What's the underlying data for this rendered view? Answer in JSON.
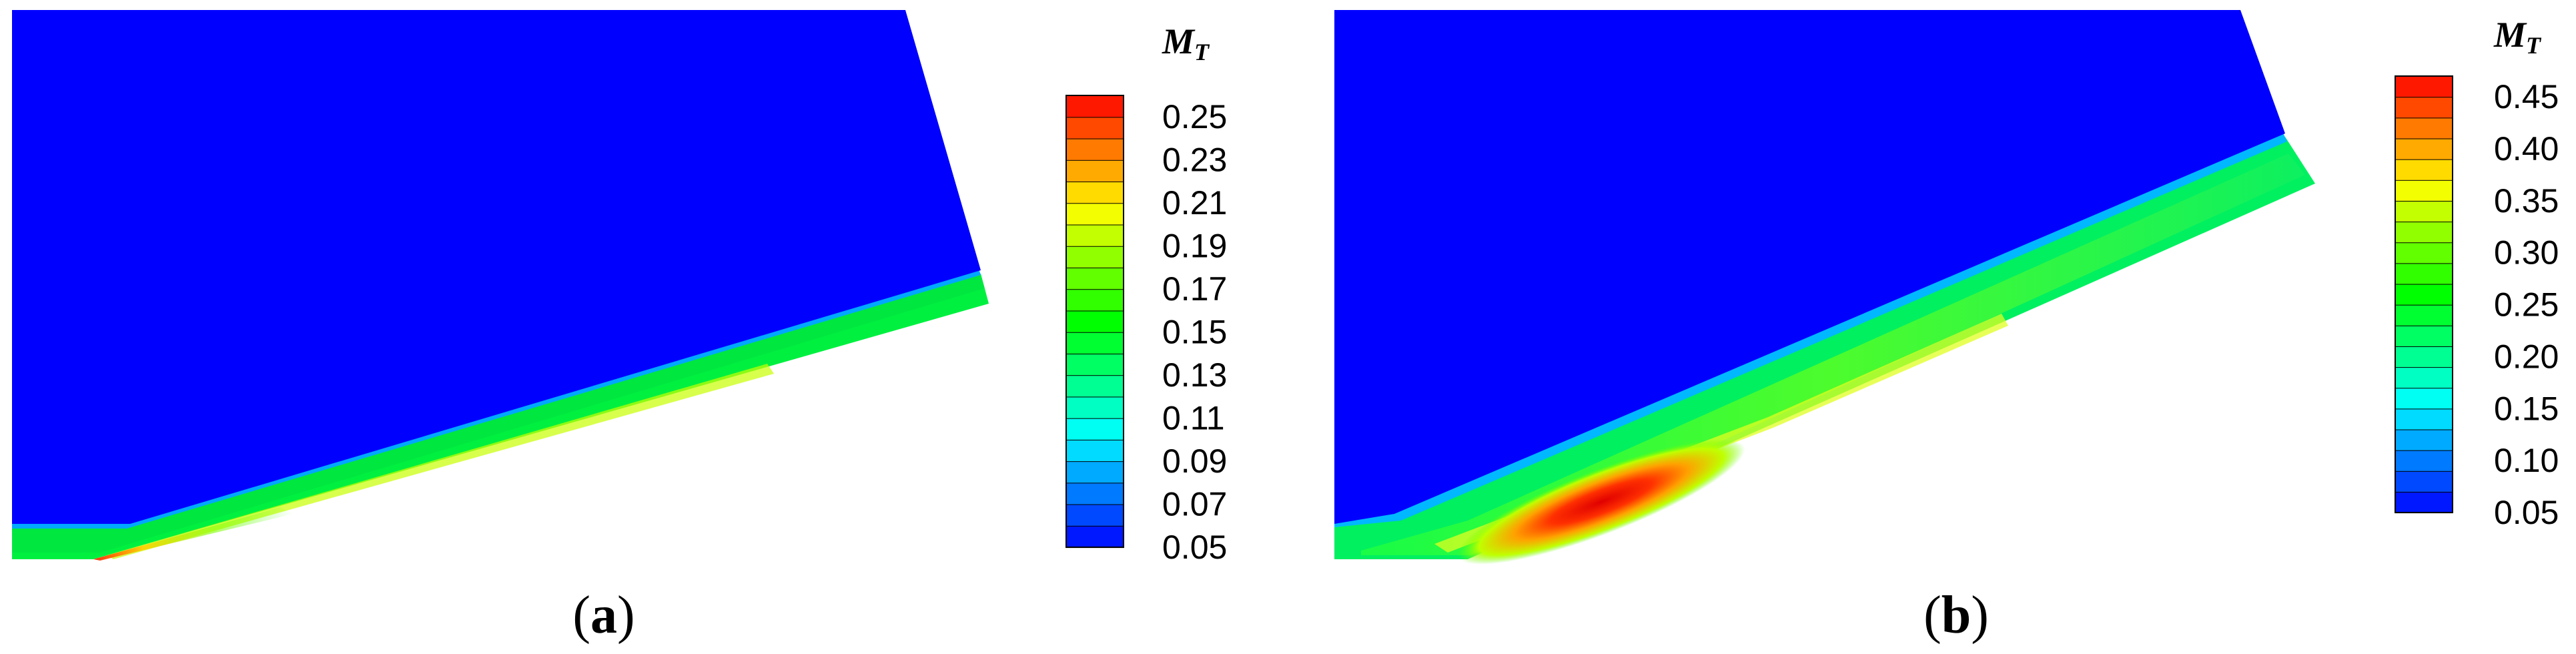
{
  "figure": {
    "panels": [
      {
        "label_open": "(",
        "label_letter": "a",
        "label_close": ")",
        "colorbar_title_main": "M",
        "colorbar_title_sub": "T",
        "colorbar_ticks": [
          "0.25",
          "0.23",
          "0.21",
          "0.19",
          "0.17",
          "0.15",
          "0.13",
          "0.11",
          "0.09",
          "0.07",
          "0.05"
        ],
        "colorbar_range": [
          0.05,
          0.26
        ],
        "colorbar_levels": 21,
        "peak_value": 0.26
      },
      {
        "label_open": "(",
        "label_letter": "b",
        "label_close": ")",
        "colorbar_title_main": "M",
        "colorbar_title_sub": "T",
        "colorbar_ticks": [
          "0.45",
          "0.40",
          "0.35",
          "0.30",
          "0.25",
          "0.20",
          "0.15",
          "0.10",
          "0.05"
        ],
        "colorbar_range": [
          0.05,
          0.47
        ],
        "colorbar_levels": 21,
        "peak_value": 0.46
      }
    ]
  },
  "chart_data": [
    {
      "type": "heatmap",
      "title": "",
      "colorbar_label": "M_T",
      "colorbar_ticks": [
        0.25,
        0.23,
        0.21,
        0.19,
        0.17,
        0.15,
        0.13,
        0.11,
        0.09,
        0.07,
        0.05
      ],
      "value_range": [
        0.05,
        0.26
      ],
      "colormap": [
        "#0000FF",
        "#0080FF",
        "#00FFFF",
        "#00FF80",
        "#00FF00",
        "#80FF00",
        "#FFFF00",
        "#FF8000",
        "#FF0000"
      ]
    },
    {
      "type": "heatmap",
      "title": "",
      "colorbar_label": "M_T",
      "colorbar_ticks": [
        0.45,
        0.4,
        0.35,
        0.3,
        0.25,
        0.2,
        0.15,
        0.1,
        0.05
      ],
      "value_range": [
        0.05,
        0.47
      ],
      "colormap": [
        "#0000FF",
        "#0080FF",
        "#00FFFF",
        "#00FF80",
        "#00FF00",
        "#80FF00",
        "#FFFF00",
        "#FF8000",
        "#FF0000"
      ]
    }
  ]
}
